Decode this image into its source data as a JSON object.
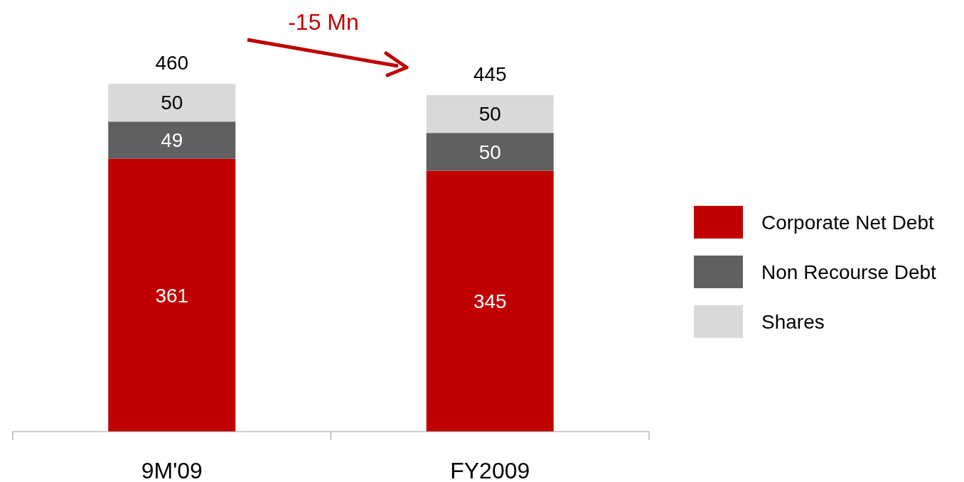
{
  "chart_data": {
    "type": "bar",
    "stacked": true,
    "categories": [
      "9M'09",
      "FY2009"
    ],
    "series": [
      {
        "name": "Corporate Net Debt",
        "color": "#c00000",
        "values": [
          361,
          345
        ]
      },
      {
        "name": "Non Recourse Debt",
        "color": "#606060",
        "values": [
          49,
          50
        ]
      },
      {
        "name": "Shares",
        "color": "#d9d9d9",
        "values": [
          50,
          50
        ]
      }
    ],
    "data_labels": true,
    "totals": [
      "460",
      "445"
    ],
    "legend": "right",
    "annotations": [
      "-15 Mn"
    ]
  }
}
